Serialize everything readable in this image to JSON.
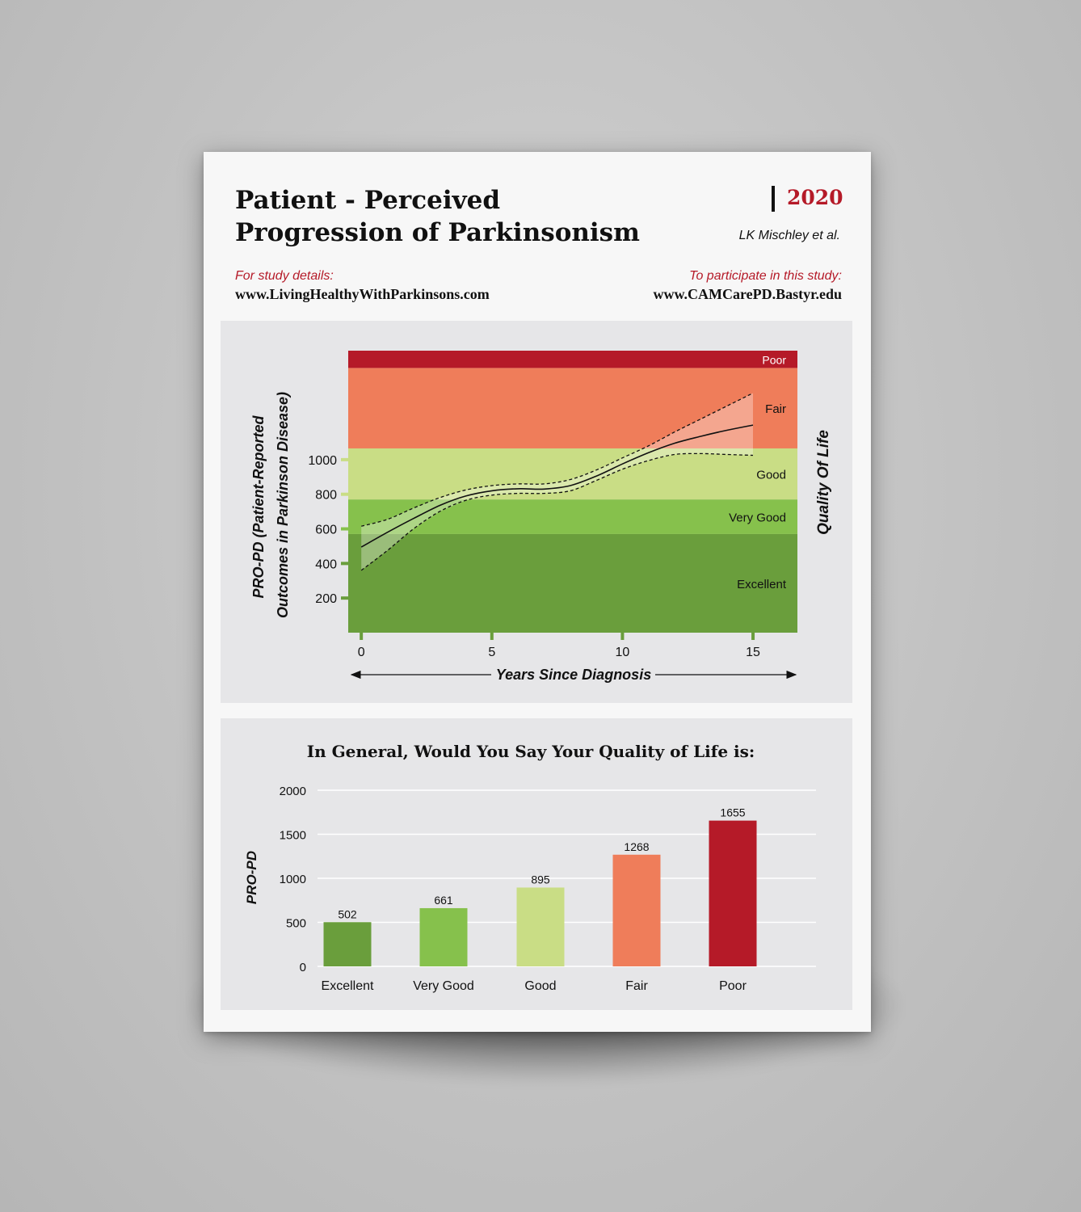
{
  "header": {
    "title_line1": "Patient - Perceived",
    "title_line2": "Progression of Parkinsonism",
    "year": "2020",
    "authors": "LK Mischley et al.",
    "study_details_label": "For study details:",
    "study_details_url": "www.LivingHealthyWithParkinsons.com",
    "participate_label": "To participate in this study:",
    "participate_url": "www.CAMCarePD.Bastyr.edu"
  },
  "colors": {
    "excellent": "#6a9e3c",
    "very_good": "#86c14c",
    "good": "#c9dd85",
    "fair": "#ef7d5a",
    "poor": "#b51a28",
    "accent_red": "#b51a28"
  },
  "chart_data": [
    {
      "type": "line",
      "xlabel": "Years Since Diagnosis",
      "ylabel": "PRO-PD (Patient-Reported Outcomes in Parkinson Disease)",
      "right_label": "Quality Of Life",
      "xlim": [
        -0.5,
        16.7
      ],
      "ylim": [
        0,
        1630
      ],
      "x_ticks": [
        0,
        5,
        10,
        15
      ],
      "y_ticks": [
        200,
        400,
        600,
        800,
        1000
      ],
      "bands": [
        {
          "label": "Excellent",
          "from": 0,
          "to": 570,
          "color": "#6a9e3c"
        },
        {
          "label": "Very Good",
          "from": 570,
          "to": 770,
          "color": "#86c14c"
        },
        {
          "label": "Good",
          "from": 770,
          "to": 1065,
          "color": "#c9dd85"
        },
        {
          "label": "Fair",
          "from": 1065,
          "to": 1530,
          "color": "#ef7d5a"
        },
        {
          "label": "Poor",
          "from": 1530,
          "to": 1630,
          "color": "#b51a28"
        }
      ],
      "series": [
        {
          "x": [
            0,
            1,
            2,
            3,
            4,
            5,
            6,
            7,
            8,
            9,
            10,
            11,
            12,
            13,
            14,
            15
          ],
          "y": [
            495,
            580,
            660,
            735,
            790,
            820,
            832,
            830,
            850,
            905,
            975,
            1040,
            1095,
            1135,
            1170,
            1200
          ],
          "lower": [
            360,
            475,
            600,
            700,
            765,
            795,
            805,
            805,
            820,
            880,
            945,
            995,
            1030,
            1035,
            1030,
            1025
          ],
          "upper": [
            615,
            655,
            720,
            780,
            825,
            850,
            860,
            860,
            885,
            940,
            1010,
            1080,
            1160,
            1235,
            1310,
            1385
          ]
        }
      ]
    },
    {
      "type": "bar",
      "title": "In General, Would You Say Your Quality of Life is:",
      "ylabel": "PRO-PD",
      "ylim": [
        0,
        2000
      ],
      "y_ticks": [
        0,
        500,
        1000,
        1500,
        2000
      ],
      "categories": [
        "Excellent",
        "Very Good",
        "Good",
        "Fair",
        "Poor"
      ],
      "values": [
        502,
        661,
        895,
        1268,
        1655
      ],
      "colors": [
        "#6a9e3c",
        "#86c14c",
        "#c9dd85",
        "#ef7d5a",
        "#b51a28"
      ]
    }
  ]
}
